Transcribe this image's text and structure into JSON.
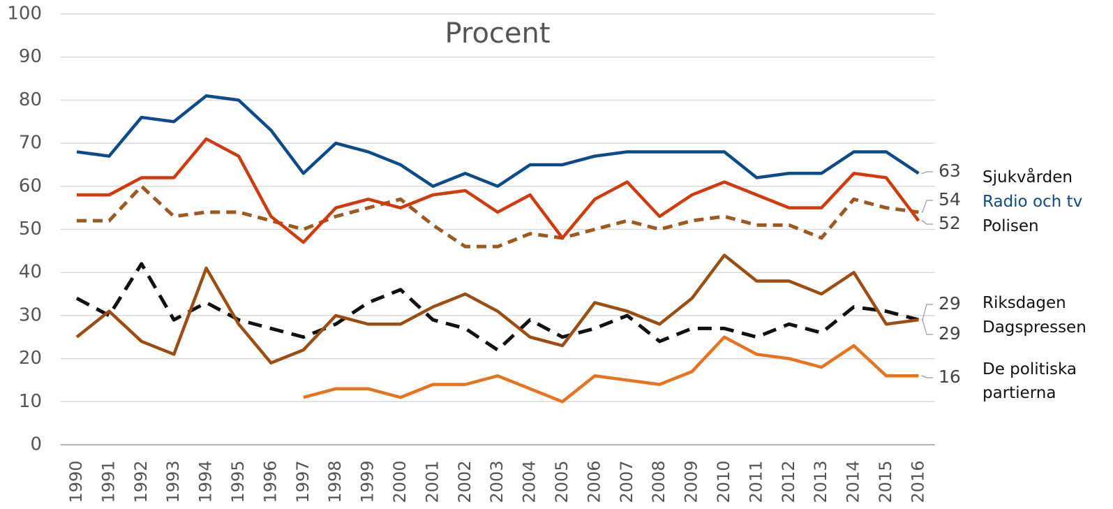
{
  "chart_data": {
    "type": "line",
    "title": "Procent",
    "categories": [
      "1990",
      "1991",
      "1992",
      "1993",
      "1994",
      "1995",
      "1996",
      "1997",
      "1998",
      "1999",
      "2000",
      "2001",
      "2002",
      "2003",
      "2004",
      "2005",
      "2006",
      "2007",
      "2008",
      "2009",
      "2010",
      "2011",
      "2012",
      "2013",
      "2014",
      "2015",
      "2016"
    ],
    "ylim": [
      0,
      100
    ],
    "yticks": [
      0,
      10,
      20,
      30,
      40,
      50,
      60,
      70,
      80,
      90,
      100
    ],
    "grid": true,
    "series": [
      {
        "name": "Sjukvården",
        "color": "#0b4a8b",
        "style": "solid",
        "legend_color": "#111111",
        "values": [
          68,
          67,
          76,
          75,
          81,
          80,
          73,
          63,
          70,
          68,
          65,
          60,
          63,
          60,
          65,
          65,
          67,
          68,
          68,
          68,
          68,
          62,
          63,
          63,
          68,
          68,
          63
        ]
      },
      {
        "name": "Radio och tv",
        "color": "#9c5a1e",
        "style": "dashed",
        "legend_color": "#0b4a8b",
        "values": [
          52,
          52,
          60,
          53,
          54,
          54,
          52,
          50,
          53,
          55,
          57,
          51,
          46,
          46,
          49,
          48,
          50,
          52,
          50,
          52,
          53,
          51,
          51,
          48,
          57,
          55,
          54
        ]
      },
      {
        "name": "Polisen",
        "color": "#d23a0c",
        "style": "solid",
        "legend_color": "#111111",
        "values": [
          58,
          58,
          62,
          62,
          71,
          67,
          53,
          47,
          55,
          57,
          55,
          58,
          59,
          54,
          58,
          48,
          57,
          61,
          53,
          58,
          61,
          58,
          55,
          55,
          63,
          62,
          52
        ]
      },
      {
        "name": "Riksdagen",
        "color": "#111111",
        "style": "dashed",
        "legend_color": "#111111",
        "values": [
          34,
          30,
          42,
          29,
          33,
          29,
          27,
          25,
          28,
          33,
          36,
          29,
          27,
          22,
          29,
          25,
          27,
          30,
          24,
          27,
          27,
          25,
          28,
          26,
          32,
          31,
          29
        ]
      },
      {
        "name": "Dagspressen",
        "color": "#9c4e12",
        "style": "solid",
        "legend_color": "#111111",
        "values": [
          25,
          31,
          24,
          21,
          41,
          28,
          19,
          22,
          30,
          28,
          28,
          32,
          35,
          31,
          25,
          23,
          33,
          31,
          28,
          34,
          44,
          38,
          38,
          35,
          40,
          28,
          29
        ]
      },
      {
        "name": "De politiska partierna",
        "color": "#e8731c",
        "style": "solid",
        "legend_color": "#111111",
        "values": [
          null,
          null,
          null,
          null,
          null,
          null,
          null,
          11,
          13,
          13,
          11,
          14,
          14,
          16,
          13,
          10,
          16,
          15,
          14,
          17,
          25,
          21,
          20,
          18,
          23,
          16,
          16
        ]
      }
    ]
  }
}
